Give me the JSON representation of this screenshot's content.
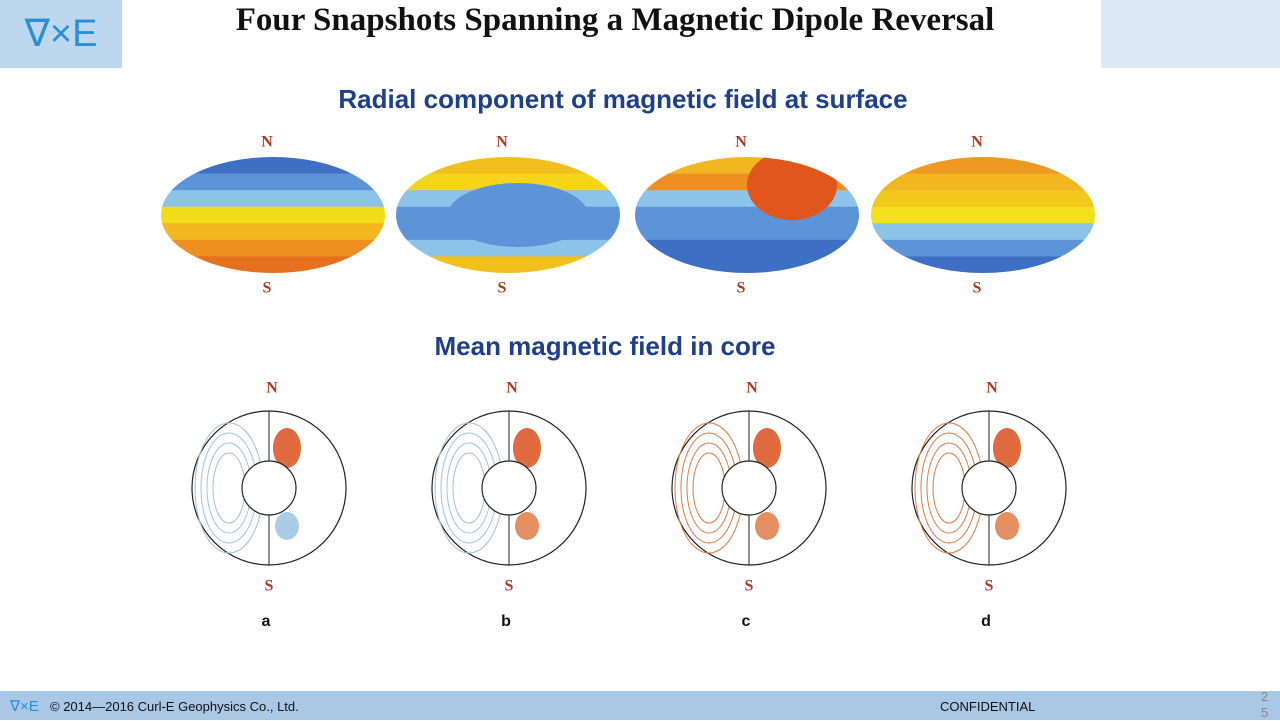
{
  "header": {
    "logo": "∇×E",
    "title": "Four Snapshots Spanning a Magnetic Dipole Reversal"
  },
  "surface": {
    "heading": "Radial component of magnetic field at surface",
    "panels": [
      {
        "north": "N",
        "south": "S"
      },
      {
        "north": "N",
        "south": "S"
      },
      {
        "north": "N",
        "south": "S"
      },
      {
        "north": "N",
        "south": "S"
      }
    ]
  },
  "core": {
    "heading": "Mean magnetic field in core",
    "panels": [
      {
        "north": "N",
        "south": "S",
        "label": "a"
      },
      {
        "north": "N",
        "south": "S",
        "label": "b"
      },
      {
        "north": "N",
        "south": "S",
        "label": "c"
      },
      {
        "north": "N",
        "south": "S",
        "label": "d"
      }
    ]
  },
  "footer": {
    "logo": "∇×E",
    "copyright": "© 2014—2016 Curl-E Geophysics Co., Ltd.",
    "confidential": "CONFIDENTIAL",
    "page": "25"
  }
}
